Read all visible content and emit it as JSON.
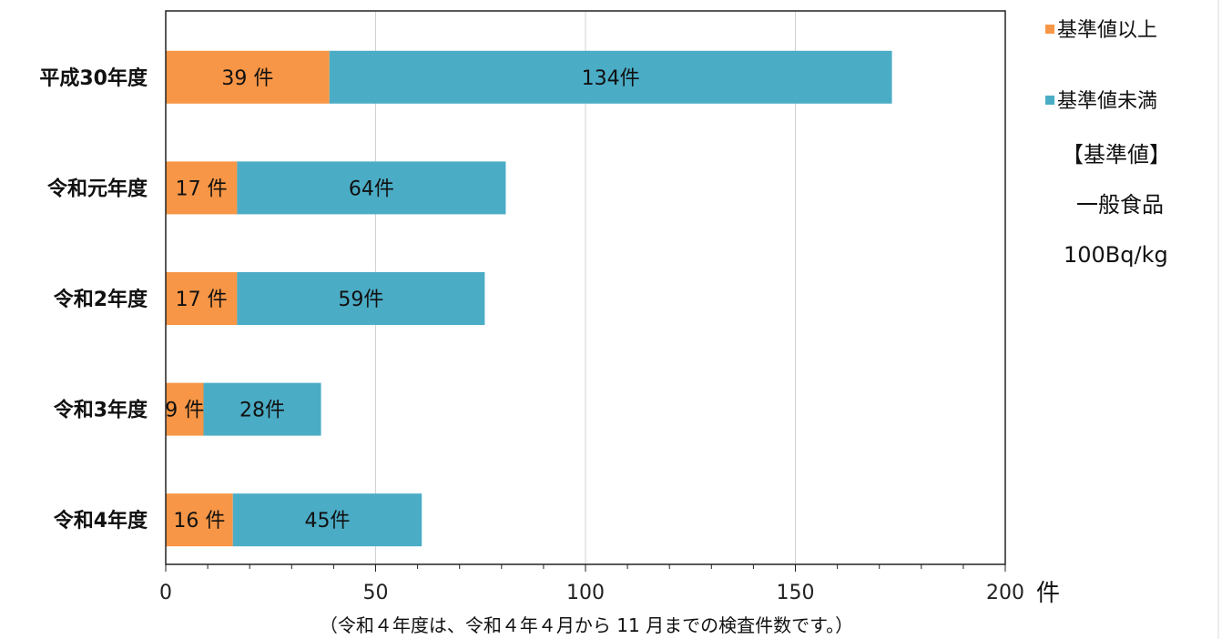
{
  "chart_data": {
    "type": "bar",
    "orientation": "horizontal",
    "stacked": true,
    "categories": [
      "平成30年度",
      "令和元年度",
      "令和2年度",
      "令和3年度",
      "令和4年度"
    ],
    "series": [
      {
        "name": "基準値以上",
        "color": "#f79646",
        "values": [
          39,
          17,
          17,
          9,
          16
        ],
        "labels": [
          "39 件",
          "17 件",
          "17 件",
          "9 件",
          "16 件"
        ]
      },
      {
        "name": "基準値未満",
        "color": "#4bacc6",
        "values": [
          134,
          64,
          59,
          28,
          45
        ],
        "labels": [
          "134件",
          "64件",
          "59件",
          "28件",
          "45件"
        ]
      }
    ],
    "xlim": [
      0,
      200
    ],
    "xticks": [
      "0",
      "50",
      "100",
      "150",
      "200"
    ],
    "x_unit": "件",
    "grid": true,
    "legend_position": "right"
  },
  "note": {
    "title": "【基準値】",
    "line1": "一般食品",
    "line2": "100Bq/kg"
  },
  "footnote": "（令和４年度は、令和４年４月から 11 月までの検査件数です。）"
}
